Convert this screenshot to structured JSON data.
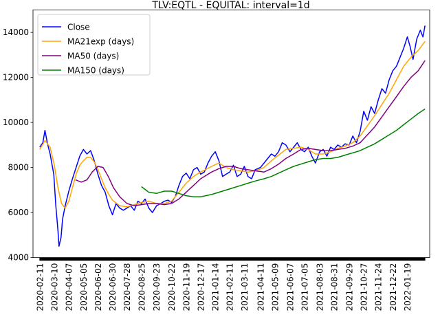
{
  "chart_data": {
    "type": "line",
    "title": "TLV:EQTL - EQUITAL: interval=1d",
    "xlabel": "",
    "ylabel": "",
    "ylim": [
      4000,
      15000
    ],
    "yticks": [
      4000,
      6000,
      8000,
      10000,
      12000,
      14000
    ],
    "ytick_labels": [
      "4000",
      "6000",
      "8000",
      "10000",
      "12000",
      "14000"
    ],
    "xlim": [
      "2020-01-29",
      "2022-03-03"
    ],
    "xticks": [
      "2020-02-11",
      "2020-03-10",
      "2020-04-07",
      "2020-05-05",
      "2020-06-02",
      "2020-06-30",
      "2020-07-28",
      "2020-08-25",
      "2020-09-23",
      "2020-10-22",
      "2020-11-19",
      "2020-12-17",
      "2021-01-14",
      "2021-02-11",
      "2021-03-11",
      "2021-04-11",
      "2021-05-09",
      "2021-06-07",
      "2021-07-05",
      "2021-08-03",
      "2021-08-31",
      "2021-09-29",
      "2021-10-27",
      "2021-11-24",
      "2021-12-22",
      "2022-01-19"
    ],
    "grid": false,
    "legend": "top-left",
    "series": [
      {
        "name": "Close",
        "color": "#0000ff",
        "points": [
          [
            "2020-02-11",
            8900
          ],
          [
            "2020-02-17",
            9100
          ],
          [
            "2020-02-21",
            9650
          ],
          [
            "2020-02-26",
            9050
          ],
          [
            "2020-03-02",
            8600
          ],
          [
            "2020-03-09",
            7700
          ],
          [
            "2020-03-13",
            6300
          ],
          [
            "2020-03-17",
            5200
          ],
          [
            "2020-03-19",
            4500
          ],
          [
            "2020-03-23",
            4900
          ],
          [
            "2020-03-26",
            5700
          ],
          [
            "2020-03-31",
            6300
          ],
          [
            "2020-04-07",
            6950
          ],
          [
            "2020-04-14",
            7500
          ],
          [
            "2020-04-21",
            8000
          ],
          [
            "2020-04-28",
            8500
          ],
          [
            "2020-05-05",
            8800
          ],
          [
            "2020-05-12",
            8600
          ],
          [
            "2020-05-19",
            8750
          ],
          [
            "2020-05-26",
            8300
          ],
          [
            "2020-06-02",
            7700
          ],
          [
            "2020-06-09",
            7200
          ],
          [
            "2020-06-16",
            6900
          ],
          [
            "2020-06-23",
            6300
          ],
          [
            "2020-06-30",
            5900
          ],
          [
            "2020-07-07",
            6400
          ],
          [
            "2020-07-14",
            6200
          ],
          [
            "2020-07-21",
            6100
          ],
          [
            "2020-07-28",
            6200
          ],
          [
            "2020-08-04",
            6300
          ],
          [
            "2020-08-11",
            6100
          ],
          [
            "2020-08-18",
            6500
          ],
          [
            "2020-08-25",
            6400
          ],
          [
            "2020-09-01",
            6600
          ],
          [
            "2020-09-08",
            6200
          ],
          [
            "2020-09-15",
            6000
          ],
          [
            "2020-09-23",
            6300
          ],
          [
            "2020-10-01",
            6400
          ],
          [
            "2020-10-08",
            6500
          ],
          [
            "2020-10-15",
            6550
          ],
          [
            "2020-10-22",
            6450
          ],
          [
            "2020-10-29",
            6700
          ],
          [
            "2020-11-05",
            7200
          ],
          [
            "2020-11-12",
            7600
          ],
          [
            "2020-11-19",
            7750
          ],
          [
            "2020-11-26",
            7500
          ],
          [
            "2020-12-03",
            7900
          ],
          [
            "2020-12-10",
            8000
          ],
          [
            "2020-12-17",
            7700
          ],
          [
            "2020-12-24",
            7800
          ],
          [
            "2020-12-31",
            8200
          ],
          [
            "2021-01-07",
            8500
          ],
          [
            "2021-01-14",
            8700
          ],
          [
            "2021-01-21",
            8300
          ],
          [
            "2021-01-28",
            7600
          ],
          [
            "2021-02-04",
            7700
          ],
          [
            "2021-02-11",
            7800
          ],
          [
            "2021-02-18",
            8100
          ],
          [
            "2021-02-25",
            7600
          ],
          [
            "2021-03-04",
            7700
          ],
          [
            "2021-03-11",
            8050
          ],
          [
            "2021-03-18",
            7600
          ],
          [
            "2021-03-25",
            7500
          ],
          [
            "2021-04-01",
            7900
          ],
          [
            "2021-04-11",
            8000
          ],
          [
            "2021-04-18",
            8200
          ],
          [
            "2021-04-25",
            8400
          ],
          [
            "2021-05-02",
            8600
          ],
          [
            "2021-05-09",
            8500
          ],
          [
            "2021-05-16",
            8700
          ],
          [
            "2021-05-23",
            9100
          ],
          [
            "2021-05-30",
            9000
          ],
          [
            "2021-06-07",
            8700
          ],
          [
            "2021-06-14",
            8900
          ],
          [
            "2021-06-21",
            9100
          ],
          [
            "2021-06-28",
            8800
          ],
          [
            "2021-07-05",
            8700
          ],
          [
            "2021-07-12",
            8900
          ],
          [
            "2021-07-19",
            8500
          ],
          [
            "2021-07-26",
            8200
          ],
          [
            "2021-08-03",
            8700
          ],
          [
            "2021-08-10",
            8800
          ],
          [
            "2021-08-17",
            8500
          ],
          [
            "2021-08-24",
            8900
          ],
          [
            "2021-08-31",
            8800
          ],
          [
            "2021-09-07",
            9000
          ],
          [
            "2021-09-14",
            8900
          ],
          [
            "2021-09-21",
            9050
          ],
          [
            "2021-09-29",
            9000
          ],
          [
            "2021-10-06",
            9400
          ],
          [
            "2021-10-13",
            9100
          ],
          [
            "2021-10-20",
            9600
          ],
          [
            "2021-10-27",
            10500
          ],
          [
            "2021-11-03",
            10100
          ],
          [
            "2021-11-10",
            10700
          ],
          [
            "2021-11-17",
            10400
          ],
          [
            "2021-11-24",
            11000
          ],
          [
            "2021-12-01",
            11500
          ],
          [
            "2021-12-08",
            11300
          ],
          [
            "2021-12-15",
            11900
          ],
          [
            "2021-12-22",
            12300
          ],
          [
            "2021-12-29",
            12500
          ],
          [
            "2022-01-05",
            12900
          ],
          [
            "2022-01-12",
            13300
          ],
          [
            "2022-01-19",
            13800
          ],
          [
            "2022-01-24",
            13400
          ],
          [
            "2022-01-30",
            12800
          ],
          [
            "2022-02-06",
            13700
          ],
          [
            "2022-02-13",
            14100
          ],
          [
            "2022-02-18",
            13800
          ],
          [
            "2022-02-22",
            14300
          ]
        ]
      },
      {
        "name": "MA21exp (days)",
        "color": "#ffa500",
        "points": [
          [
            "2020-02-11",
            8800
          ],
          [
            "2020-02-21",
            9200
          ],
          [
            "2020-03-02",
            8900
          ],
          [
            "2020-03-10",
            8100
          ],
          [
            "2020-03-17",
            7100
          ],
          [
            "2020-03-24",
            6400
          ],
          [
            "2020-03-31",
            6200
          ],
          [
            "2020-04-07",
            6500
          ],
          [
            "2020-04-14",
            7100
          ],
          [
            "2020-04-21",
            7700
          ],
          [
            "2020-04-28",
            8100
          ],
          [
            "2020-05-05",
            8300
          ],
          [
            "2020-05-12",
            8450
          ],
          [
            "2020-05-19",
            8450
          ],
          [
            "2020-05-26",
            8250
          ],
          [
            "2020-06-02",
            7900
          ],
          [
            "2020-06-09",
            7500
          ],
          [
            "2020-06-16",
            7100
          ],
          [
            "2020-06-23",
            6800
          ],
          [
            "2020-06-30",
            6550
          ],
          [
            "2020-07-14",
            6300
          ],
          [
            "2020-07-28",
            6250
          ],
          [
            "2020-08-11",
            6350
          ],
          [
            "2020-08-25",
            6450
          ],
          [
            "2020-09-08",
            6500
          ],
          [
            "2020-09-23",
            6400
          ],
          [
            "2020-10-08",
            6400
          ],
          [
            "2020-10-22",
            6500
          ],
          [
            "2020-11-05",
            6900
          ],
          [
            "2020-11-19",
            7300
          ],
          [
            "2020-12-03",
            7600
          ],
          [
            "2020-12-17",
            7800
          ],
          [
            "2021-01-07",
            8050
          ],
          [
            "2021-01-21",
            8200
          ],
          [
            "2021-02-04",
            8000
          ],
          [
            "2021-02-18",
            7900
          ],
          [
            "2021-03-04",
            7850
          ],
          [
            "2021-03-18",
            7800
          ],
          [
            "2021-04-01",
            7850
          ],
          [
            "2021-04-18",
            8000
          ],
          [
            "2021-05-02",
            8300
          ],
          [
            "2021-05-16",
            8550
          ],
          [
            "2021-05-30",
            8800
          ],
          [
            "2021-06-14",
            8850
          ],
          [
            "2021-06-28",
            8900
          ],
          [
            "2021-07-12",
            8800
          ],
          [
            "2021-07-26",
            8600
          ],
          [
            "2021-08-10",
            8600
          ],
          [
            "2021-08-24",
            8700
          ],
          [
            "2021-09-07",
            8850
          ],
          [
            "2021-09-21",
            8950
          ],
          [
            "2021-10-06",
            9100
          ],
          [
            "2021-10-20",
            9400
          ],
          [
            "2021-11-03",
            9850
          ],
          [
            "2021-11-17",
            10300
          ],
          [
            "2021-12-01",
            10800
          ],
          [
            "2021-12-15",
            11300
          ],
          [
            "2021-12-29",
            11900
          ],
          [
            "2022-01-12",
            12500
          ],
          [
            "2022-01-26",
            12900
          ],
          [
            "2022-02-09",
            13200
          ],
          [
            "2022-02-22",
            13600
          ]
        ]
      },
      {
        "name": "MA50 (days)",
        "color": "#800080",
        "points": [
          [
            "2020-04-20",
            7450
          ],
          [
            "2020-05-01",
            7350
          ],
          [
            "2020-05-12",
            7450
          ],
          [
            "2020-05-22",
            7800
          ],
          [
            "2020-06-02",
            8050
          ],
          [
            "2020-06-12",
            8000
          ],
          [
            "2020-06-22",
            7600
          ],
          [
            "2020-07-02",
            7100
          ],
          [
            "2020-07-14",
            6700
          ],
          [
            "2020-07-28",
            6400
          ],
          [
            "2020-08-11",
            6300
          ],
          [
            "2020-08-25",
            6350
          ],
          [
            "2020-09-08",
            6400
          ],
          [
            "2020-09-23",
            6400
          ],
          [
            "2020-10-08",
            6350
          ],
          [
            "2020-10-22",
            6400
          ],
          [
            "2020-11-05",
            6600
          ],
          [
            "2020-11-19",
            6900
          ],
          [
            "2020-12-03",
            7200
          ],
          [
            "2020-12-17",
            7500
          ],
          [
            "2021-01-07",
            7800
          ],
          [
            "2021-01-21",
            7950
          ],
          [
            "2021-02-04",
            8050
          ],
          [
            "2021-02-18",
            8050
          ],
          [
            "2021-03-04",
            7950
          ],
          [
            "2021-03-18",
            7900
          ],
          [
            "2021-04-01",
            7850
          ],
          [
            "2021-04-18",
            7800
          ],
          [
            "2021-05-02",
            7950
          ],
          [
            "2021-05-16",
            8150
          ],
          [
            "2021-05-30",
            8400
          ],
          [
            "2021-06-14",
            8600
          ],
          [
            "2021-06-28",
            8800
          ],
          [
            "2021-07-12",
            8850
          ],
          [
            "2021-07-26",
            8800
          ],
          [
            "2021-08-10",
            8750
          ],
          [
            "2021-08-24",
            8750
          ],
          [
            "2021-09-07",
            8800
          ],
          [
            "2021-09-21",
            8850
          ],
          [
            "2021-10-06",
            8950
          ],
          [
            "2021-10-20",
            9100
          ],
          [
            "2021-11-03",
            9450
          ],
          [
            "2021-11-17",
            9800
          ],
          [
            "2021-12-01",
            10250
          ],
          [
            "2021-12-15",
            10700
          ],
          [
            "2021-12-29",
            11150
          ],
          [
            "2022-01-12",
            11600
          ],
          [
            "2022-01-26",
            12000
          ],
          [
            "2022-02-09",
            12300
          ],
          [
            "2022-02-22",
            12750
          ]
        ]
      },
      {
        "name": "MA150 (days)",
        "color": "#008000",
        "points": [
          [
            "2020-08-25",
            7150
          ],
          [
            "2020-09-08",
            6900
          ],
          [
            "2020-09-23",
            6850
          ],
          [
            "2020-10-08",
            6950
          ],
          [
            "2020-10-22",
            6950
          ],
          [
            "2020-11-05",
            6850
          ],
          [
            "2020-11-19",
            6750
          ],
          [
            "2020-12-03",
            6700
          ],
          [
            "2020-12-17",
            6700
          ],
          [
            "2021-01-07",
            6800
          ],
          [
            "2021-01-21",
            6900
          ],
          [
            "2021-02-04",
            7000
          ],
          [
            "2021-02-18",
            7100
          ],
          [
            "2021-03-04",
            7200
          ],
          [
            "2021-03-18",
            7300
          ],
          [
            "2021-04-01",
            7400
          ],
          [
            "2021-04-18",
            7500
          ],
          [
            "2021-05-02",
            7600
          ],
          [
            "2021-05-16",
            7750
          ],
          [
            "2021-05-30",
            7900
          ],
          [
            "2021-06-14",
            8050
          ],
          [
            "2021-06-28",
            8150
          ],
          [
            "2021-07-12",
            8250
          ],
          [
            "2021-07-26",
            8350
          ],
          [
            "2021-08-10",
            8400
          ],
          [
            "2021-08-24",
            8400
          ],
          [
            "2021-09-07",
            8450
          ],
          [
            "2021-09-21",
            8550
          ],
          [
            "2021-10-06",
            8650
          ],
          [
            "2021-10-20",
            8750
          ],
          [
            "2021-11-03",
            8900
          ],
          [
            "2021-11-17",
            9050
          ],
          [
            "2021-12-01",
            9250
          ],
          [
            "2021-12-15",
            9450
          ],
          [
            "2021-12-29",
            9650
          ],
          [
            "2022-01-12",
            9900
          ],
          [
            "2022-01-26",
            10150
          ],
          [
            "2022-02-09",
            10400
          ],
          [
            "2022-02-22",
            10600
          ]
        ]
      }
    ]
  }
}
